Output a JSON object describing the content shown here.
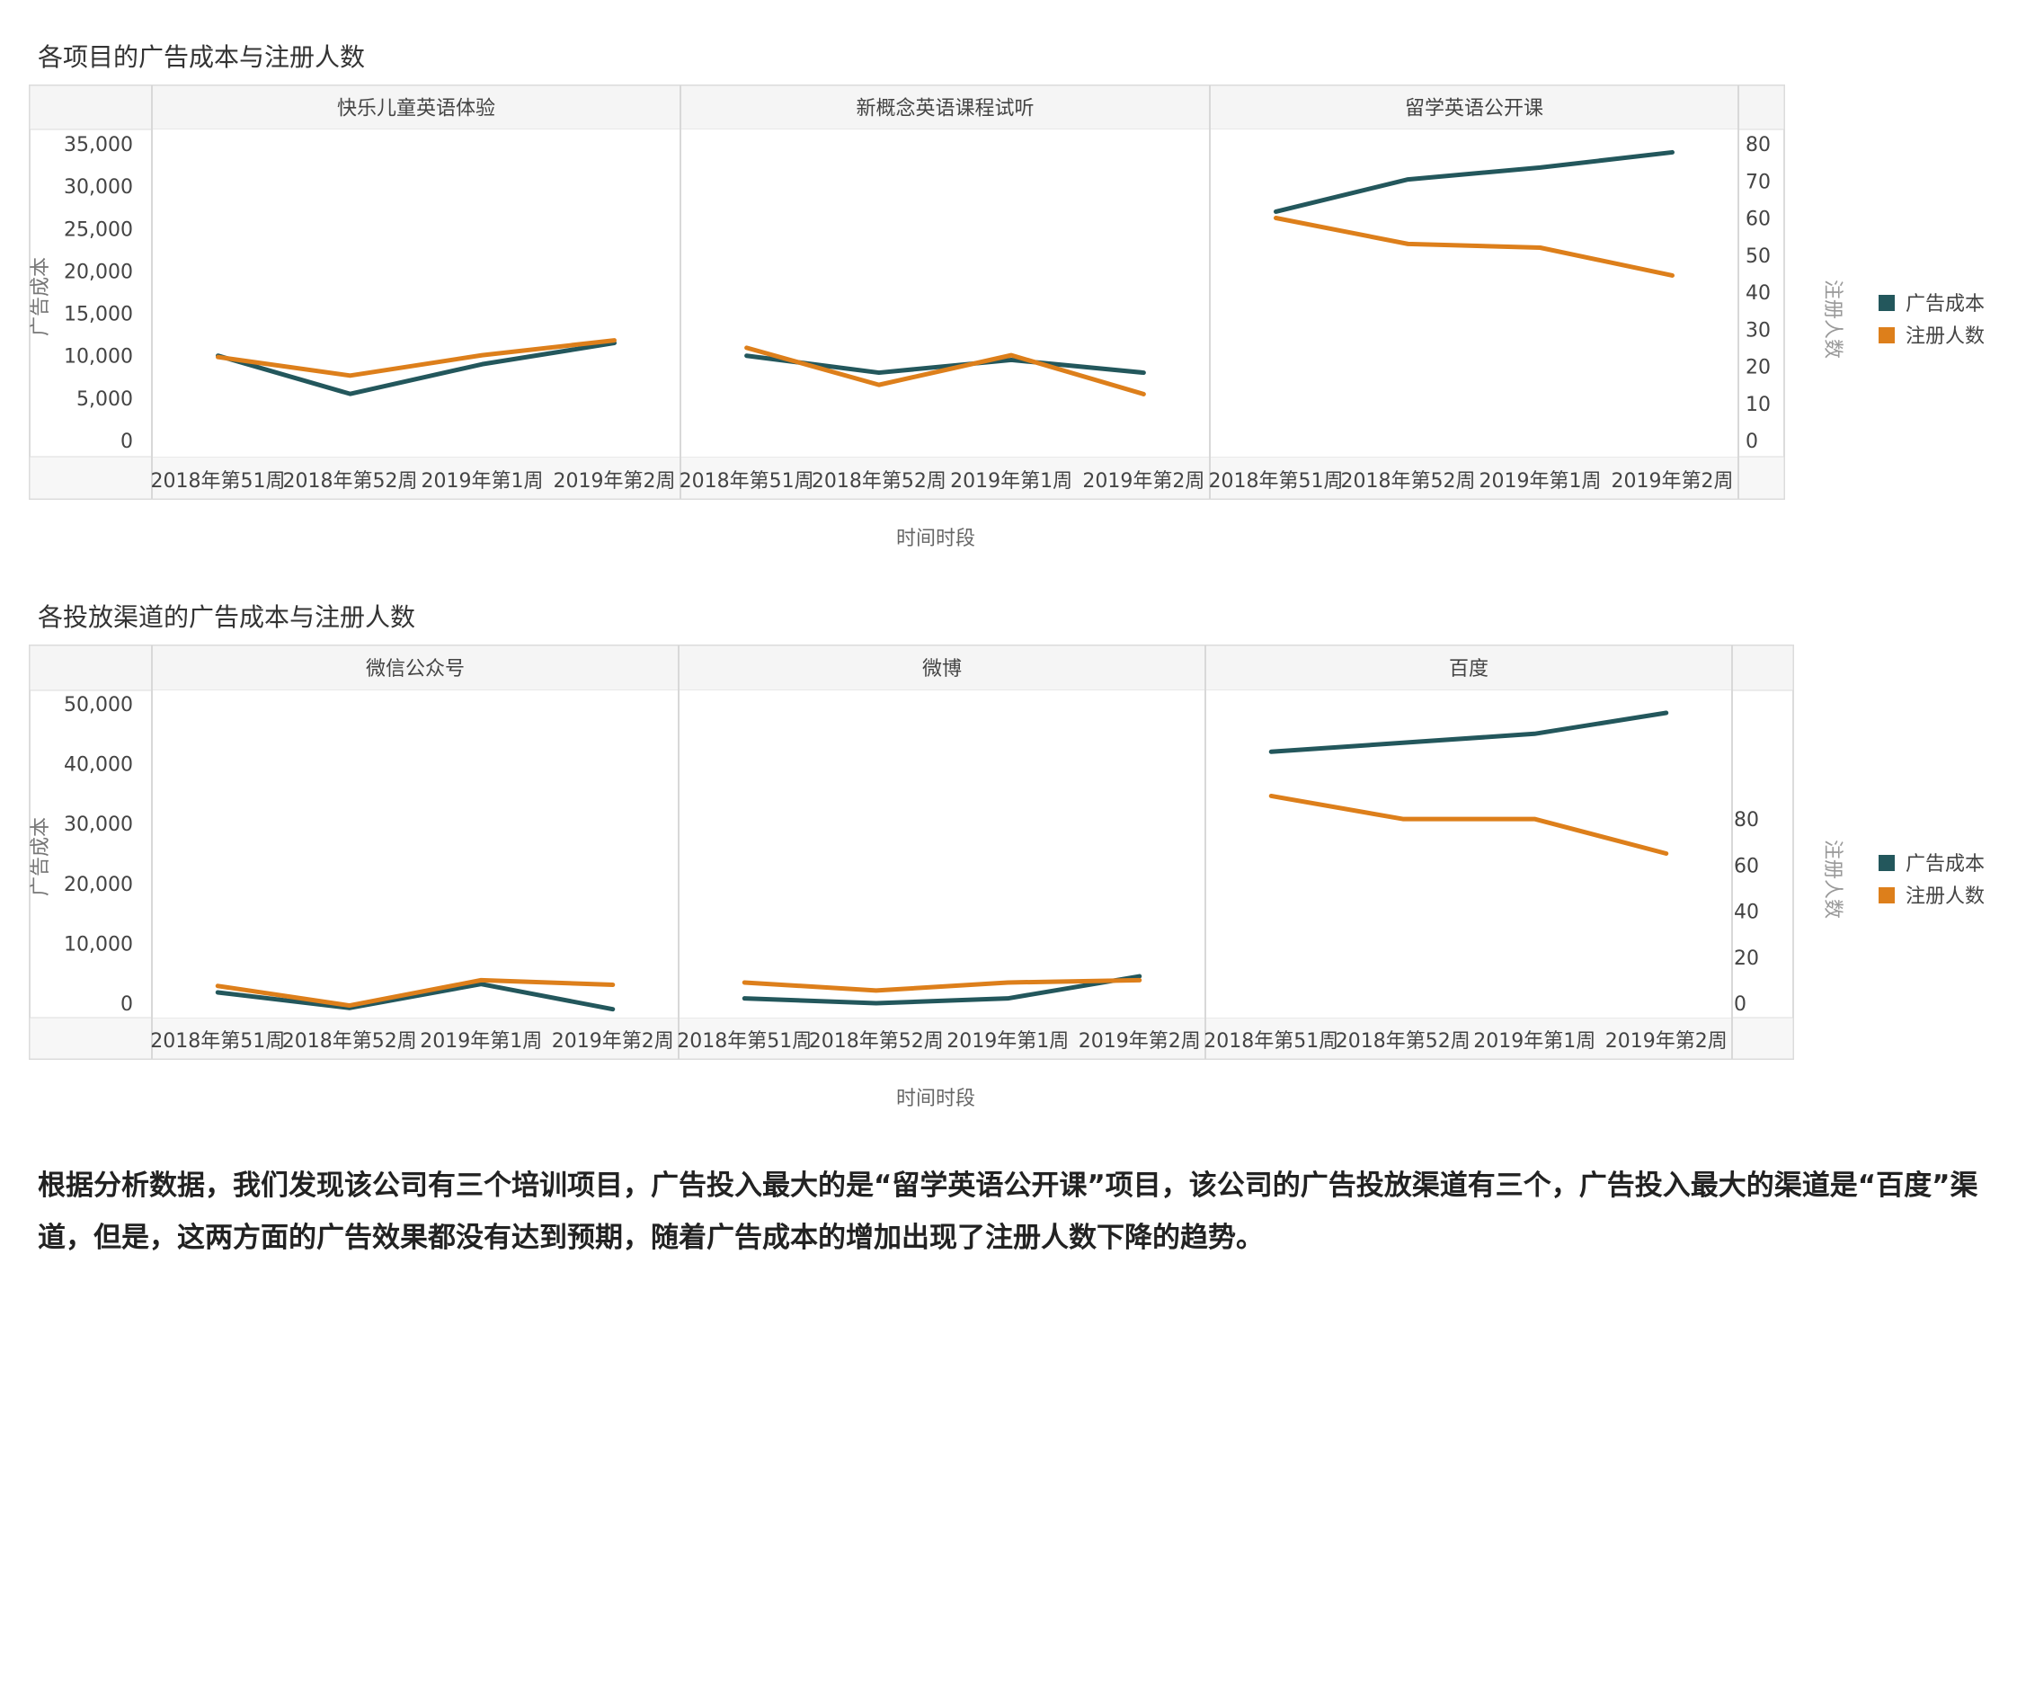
{
  "colors": {
    "cost": "#23575c",
    "signup": "#dd7f1b"
  },
  "legend": {
    "cost": "广告成本",
    "signup": "注册人数"
  },
  "chart_data": [
    {
      "type": "line",
      "title": "各项目的广告成本与注册人数",
      "xlabel": "时间时段",
      "ylabel_left": "广告成本",
      "ylabel_right": "注册人数",
      "ylim_left": [
        0,
        35000
      ],
      "yticks_left": [
        0,
        5000,
        10000,
        15000,
        20000,
        25000,
        30000,
        35000
      ],
      "ytick_labels_left": [
        "0",
        "5,000",
        "10,000",
        "15,000",
        "20,000",
        "25,000",
        "30,000",
        "35,000"
      ],
      "ylim_right": [
        0,
        80
      ],
      "yticks_right": [
        0,
        10,
        20,
        30,
        40,
        50,
        60,
        70,
        80
      ],
      "ytick_labels_right": [
        "0",
        "10",
        "20",
        "30",
        "40",
        "50",
        "60",
        "70",
        "80"
      ],
      "categories": [
        "2018年第51周",
        "2018年第52周",
        "2019年第1周",
        "2019年第2周"
      ],
      "panels": [
        {
          "name": "快乐儿童英语体验",
          "cost": [
            10000,
            5500,
            9000,
            11500
          ],
          "signup": [
            22.5,
            17.5,
            23,
            27
          ]
        },
        {
          "name": "新概念英语课程试听",
          "cost": [
            10000,
            8000,
            9500,
            8000
          ],
          "signup": [
            25,
            15,
            23,
            12.5
          ]
        },
        {
          "name": "留学英语公开课",
          "cost": [
            27000,
            30800,
            32200,
            34000
          ],
          "signup": [
            60,
            53,
            52,
            44.5
          ]
        }
      ]
    },
    {
      "type": "line",
      "title": "各投放渠道的广告成本与注册人数",
      "xlabel": "时间时段",
      "ylabel_left": "广告成本",
      "ylabel_right": "注册人数",
      "ylim_left": [
        0,
        50000
      ],
      "yticks_left": [
        0,
        10000,
        20000,
        30000,
        40000,
        50000
      ],
      "ytick_labels_left": [
        "0",
        "10,000",
        "20,000",
        "30,000",
        "40,000",
        "50,000"
      ],
      "ylim_right": [
        0,
        130
      ],
      "yticks_right": [
        0,
        20,
        40,
        60,
        80
      ],
      "ytick_labels_right": [
        "0",
        "20",
        "40",
        "60",
        "80"
      ],
      "categories": [
        "2018年第51周",
        "2018年第52周",
        "2019年第1周",
        "2019年第2周"
      ],
      "panels": [
        {
          "name": "微信公众号",
          "cost": [
            1800,
            -800,
            3200,
            -1000
          ],
          "signup": [
            7.5,
            -1,
            10,
            8
          ]
        },
        {
          "name": "微博",
          "cost": [
            800,
            0,
            800,
            4500
          ],
          "signup": [
            9,
            5.5,
            9,
            10
          ]
        },
        {
          "name": "百度",
          "cost": [
            42000,
            43500,
            45000,
            48500
          ],
          "signup": [
            90,
            80,
            80,
            65
          ]
        }
      ]
    }
  ],
  "summary": "根据分析数据，我们发现该公司有三个培训项目，广告投入最大的是“留学英语公开课”项目，该公司的广告投放渠道有三个，广告投入最大的渠道是“百度”渠道，但是，这两方面的广告效果都没有达到预期，随着广告成本的增加出现了注册人数下降的趋势。"
}
